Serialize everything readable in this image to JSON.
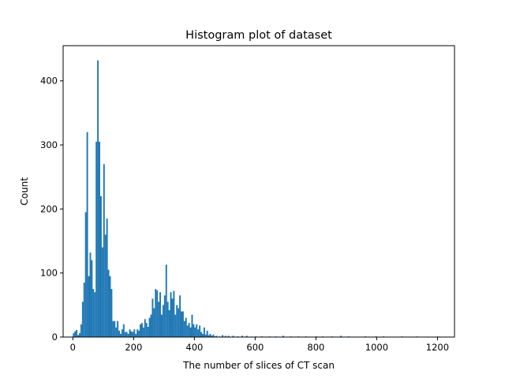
{
  "chart_data": {
    "type": "bar",
    "title": "Histogram plot of dataset",
    "xlabel": "The number of slices of CT scan",
    "ylabel": "Count",
    "xlim": [
      -32,
      1256
    ],
    "ylim": [
      0,
      455
    ],
    "xticks": [
      0,
      200,
      400,
      600,
      800,
      1000,
      1200
    ],
    "yticks": [
      0,
      100,
      200,
      300,
      400
    ],
    "bar_color": "#1f77b4",
    "bin_width": 5,
    "bins": [
      {
        "x": 0,
        "count": 6
      },
      {
        "x": 5,
        "count": 9
      },
      {
        "x": 10,
        "count": 11
      },
      {
        "x": 15,
        "count": 3
      },
      {
        "x": 20,
        "count": 6
      },
      {
        "x": 25,
        "count": 20
      },
      {
        "x": 30,
        "count": 55
      },
      {
        "x": 35,
        "count": 85
      },
      {
        "x": 40,
        "count": 195
      },
      {
        "x": 45,
        "count": 320
      },
      {
        "x": 50,
        "count": 95
      },
      {
        "x": 55,
        "count": 132
      },
      {
        "x": 60,
        "count": 120
      },
      {
        "x": 65,
        "count": 75
      },
      {
        "x": 70,
        "count": 70
      },
      {
        "x": 75,
        "count": 305
      },
      {
        "x": 80,
        "count": 432
      },
      {
        "x": 85,
        "count": 305
      },
      {
        "x": 90,
        "count": 220
      },
      {
        "x": 95,
        "count": 140
      },
      {
        "x": 100,
        "count": 270
      },
      {
        "x": 105,
        "count": 160
      },
      {
        "x": 110,
        "count": 185
      },
      {
        "x": 115,
        "count": 105
      },
      {
        "x": 120,
        "count": 95
      },
      {
        "x": 125,
        "count": 75
      },
      {
        "x": 130,
        "count": 25
      },
      {
        "x": 135,
        "count": 25
      },
      {
        "x": 140,
        "count": 15
      },
      {
        "x": 145,
        "count": 25
      },
      {
        "x": 150,
        "count": 10
      },
      {
        "x": 155,
        "count": 5
      },
      {
        "x": 160,
        "count": 12
      },
      {
        "x": 165,
        "count": 20
      },
      {
        "x": 170,
        "count": 8
      },
      {
        "x": 175,
        "count": 8
      },
      {
        "x": 180,
        "count": 5
      },
      {
        "x": 185,
        "count": 12
      },
      {
        "x": 190,
        "count": 9
      },
      {
        "x": 195,
        "count": 8
      },
      {
        "x": 200,
        "count": 12
      },
      {
        "x": 205,
        "count": 5
      },
      {
        "x": 210,
        "count": 12
      },
      {
        "x": 215,
        "count": 10
      },
      {
        "x": 220,
        "count": 20
      },
      {
        "x": 225,
        "count": 22
      },
      {
        "x": 230,
        "count": 15
      },
      {
        "x": 235,
        "count": 28
      },
      {
        "x": 240,
        "count": 22
      },
      {
        "x": 245,
        "count": 16
      },
      {
        "x": 250,
        "count": 30
      },
      {
        "x": 255,
        "count": 35
      },
      {
        "x": 260,
        "count": 60
      },
      {
        "x": 265,
        "count": 45
      },
      {
        "x": 270,
        "count": 75
      },
      {
        "x": 275,
        "count": 73
      },
      {
        "x": 280,
        "count": 55
      },
      {
        "x": 285,
        "count": 70
      },
      {
        "x": 290,
        "count": 35
      },
      {
        "x": 295,
        "count": 50
      },
      {
        "x": 300,
        "count": 65
      },
      {
        "x": 305,
        "count": 113
      },
      {
        "x": 310,
        "count": 55
      },
      {
        "x": 315,
        "count": 42
      },
      {
        "x": 320,
        "count": 70
      },
      {
        "x": 325,
        "count": 60
      },
      {
        "x": 330,
        "count": 72
      },
      {
        "x": 335,
        "count": 35
      },
      {
        "x": 340,
        "count": 50
      },
      {
        "x": 345,
        "count": 45
      },
      {
        "x": 350,
        "count": 65
      },
      {
        "x": 355,
        "count": 40
      },
      {
        "x": 360,
        "count": 40
      },
      {
        "x": 365,
        "count": 25
      },
      {
        "x": 370,
        "count": 30
      },
      {
        "x": 375,
        "count": 18
      },
      {
        "x": 380,
        "count": 22
      },
      {
        "x": 385,
        "count": 15
      },
      {
        "x": 390,
        "count": 35
      },
      {
        "x": 395,
        "count": 20
      },
      {
        "x": 400,
        "count": 15
      },
      {
        "x": 405,
        "count": 20
      },
      {
        "x": 410,
        "count": 12
      },
      {
        "x": 415,
        "count": 18
      },
      {
        "x": 420,
        "count": 8
      },
      {
        "x": 425,
        "count": 5
      },
      {
        "x": 430,
        "count": 15
      },
      {
        "x": 435,
        "count": 4
      },
      {
        "x": 440,
        "count": 10
      },
      {
        "x": 445,
        "count": 3
      },
      {
        "x": 450,
        "count": 5
      },
      {
        "x": 455,
        "count": 2
      },
      {
        "x": 460,
        "count": 4
      },
      {
        "x": 465,
        "count": 1
      },
      {
        "x": 470,
        "count": 2
      },
      {
        "x": 480,
        "count": 1
      },
      {
        "x": 490,
        "count": 3
      },
      {
        "x": 500,
        "count": 2
      },
      {
        "x": 510,
        "count": 2
      },
      {
        "x": 525,
        "count": 2
      },
      {
        "x": 540,
        "count": 1
      },
      {
        "x": 555,
        "count": 2
      },
      {
        "x": 570,
        "count": 2
      },
      {
        "x": 600,
        "count": 1
      },
      {
        "x": 620,
        "count": 1
      },
      {
        "x": 645,
        "count": 1
      },
      {
        "x": 665,
        "count": 1
      },
      {
        "x": 690,
        "count": 2
      },
      {
        "x": 715,
        "count": 1
      },
      {
        "x": 740,
        "count": 1
      },
      {
        "x": 765,
        "count": 1
      },
      {
        "x": 800,
        "count": 1
      },
      {
        "x": 820,
        "count": 1
      },
      {
        "x": 850,
        "count": 1
      },
      {
        "x": 880,
        "count": 2
      },
      {
        "x": 905,
        "count": 1
      },
      {
        "x": 960,
        "count": 1
      },
      {
        "x": 995,
        "count": 1
      },
      {
        "x": 1020,
        "count": 1
      },
      {
        "x": 1080,
        "count": 1
      },
      {
        "x": 1130,
        "count": 1
      },
      {
        "x": 1200,
        "count": 1
      }
    ]
  }
}
